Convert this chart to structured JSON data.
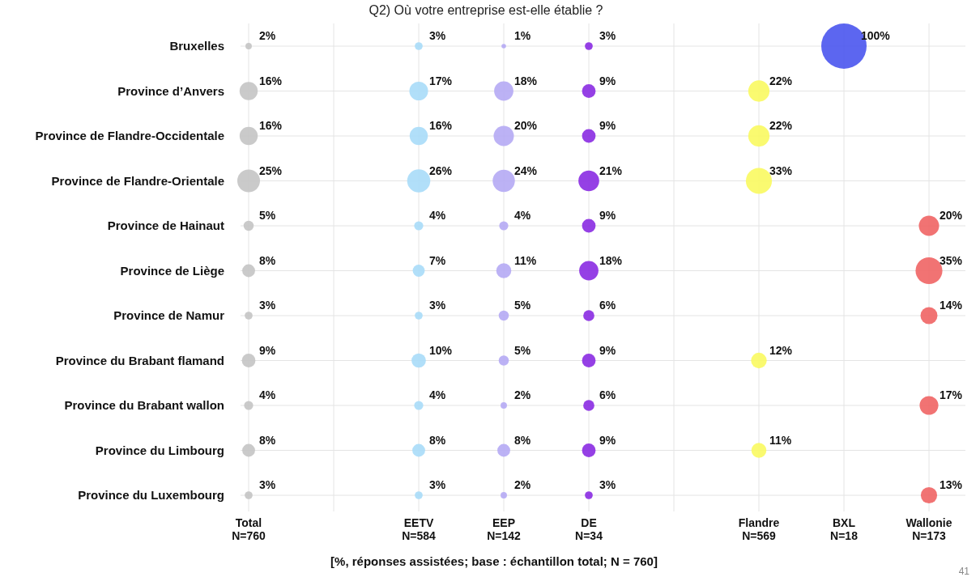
{
  "chart_data": {
    "type": "heatmap",
    "title": "Q2) Où votre entreprise est-elle établie ?",
    "categories": [
      "Total\nN=760",
      null,
      "EETV\nN=584",
      "EEP\nN=142",
      "DE\nN=34",
      null,
      "Flandre\nN=569",
      "BXL\nN=18",
      "Wallonie\nN=173"
    ],
    "y_categories": [
      "Bruxelles",
      "Province d’Anvers",
      "Province de Flandre-Occidentale",
      "Province de Flandre-Orientale",
      "Province de Hainaut",
      "Province de Liège",
      "Province de Namur",
      "Province du Brabant flamand",
      "Province du Brabant wallon",
      "Province du Limbourg",
      "Province du Luxembourg"
    ],
    "colors": [
      "#c4c4c4",
      null,
      "#a9dcf8",
      "#b5aaf4",
      "#8a2be2",
      null,
      "#fafa60",
      "#4a55ee",
      "#f06464"
    ],
    "cells": [
      [
        2,
        null,
        3,
        1,
        3,
        null,
        null,
        100,
        null
      ],
      [
        16,
        null,
        17,
        18,
        9,
        null,
        22,
        null,
        null
      ],
      [
        16,
        null,
        16,
        20,
        9,
        null,
        22,
        null,
        null
      ],
      [
        25,
        null,
        26,
        24,
        21,
        null,
        33,
        null,
        null
      ],
      [
        5,
        null,
        4,
        4,
        9,
        null,
        null,
        null,
        20
      ],
      [
        8,
        null,
        7,
        11,
        18,
        null,
        null,
        null,
        35
      ],
      [
        3,
        null,
        3,
        5,
        6,
        null,
        null,
        null,
        14
      ],
      [
        9,
        null,
        10,
        5,
        9,
        null,
        12,
        null,
        null
      ],
      [
        4,
        null,
        4,
        2,
        6,
        null,
        null,
        null,
        17
      ],
      [
        8,
        null,
        8,
        8,
        9,
        null,
        11,
        null,
        null
      ],
      [
        3,
        null,
        3,
        2,
        3,
        null,
        null,
        null,
        13
      ]
    ],
    "cell_labels": [
      [
        "2%",
        null,
        "3%",
        "1%",
        "3%",
        null,
        null,
        "100%",
        null
      ],
      [
        "16%",
        null,
        "17%",
        "18%",
        "9%",
        null,
        "22%",
        null,
        null
      ],
      [
        "16%",
        null,
        "16%",
        "20%",
        "9%",
        null,
        "22%",
        null,
        null
      ],
      [
        "25%",
        null,
        "26%",
        "24%",
        "21%",
        null,
        "33%",
        null,
        null
      ],
      [
        "5%",
        null,
        "4%",
        "4%",
        "9%",
        null,
        null,
        null,
        "20%"
      ],
      [
        "8%",
        null,
        "7%",
        "11%",
        "18%",
        null,
        null,
        null,
        "35%"
      ],
      [
        "3%",
        null,
        "3%",
        "5%",
        "6%",
        null,
        null,
        null,
        "14%"
      ],
      [
        "9%",
        null,
        "10%",
        "5%",
        "9%",
        null,
        "12%",
        null,
        null
      ],
      [
        "4%",
        null,
        "4%",
        "2%",
        "6%",
        null,
        null,
        null,
        "17%"
      ],
      [
        "8%",
        null,
        "8%",
        "8%",
        "9%",
        null,
        "11%",
        null,
        null
      ],
      [
        "3%",
        null,
        "3%",
        "2%",
        "3%",
        null,
        null,
        null,
        "13%"
      ]
    ],
    "data_labels": true,
    "grid": true,
    "annotations": [
      "[%, réponses assistées; base : échantillon total; N = 760]",
      "41"
    ]
  }
}
